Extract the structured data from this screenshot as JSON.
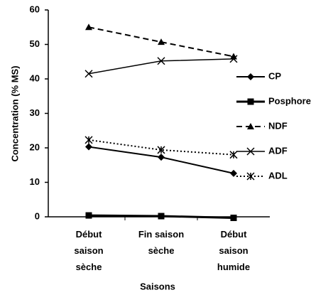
{
  "chart_data": {
    "type": "line",
    "categories": [
      "Début saison sèche",
      "Fin saison sèche",
      "Début saison humide"
    ],
    "xlabel": "Saisons",
    "ylabel": "Concentration (% MS)",
    "ylim": [
      0,
      60
    ],
    "yticks": [
      0,
      10,
      20,
      30,
      40,
      50,
      60
    ],
    "grid": false,
    "legend": "right",
    "series": [
      {
        "name": "CP",
        "color": "#000000",
        "marker": "diamond",
        "dash": "solid",
        "values": [
          20.3,
          17.3,
          12.6
        ]
      },
      {
        "name": "Posphore",
        "color": "#000000",
        "marker": "square",
        "dash": "solid",
        "values": [
          0.4,
          0.2,
          -0.3
        ]
      },
      {
        "name": "NDF",
        "color": "#000000",
        "marker": "triangle",
        "dash": "dashed",
        "values": [
          55,
          50.7,
          46.5
        ]
      },
      {
        "name": "ADF",
        "color": "#000000",
        "marker": "x",
        "dash": "solid",
        "values": [
          41.5,
          45.2,
          45.8
        ]
      },
      {
        "name": "ADL",
        "color": "#000000",
        "marker": "star",
        "dash": "dotted",
        "values": [
          22.3,
          19.4,
          18.0
        ]
      }
    ]
  }
}
